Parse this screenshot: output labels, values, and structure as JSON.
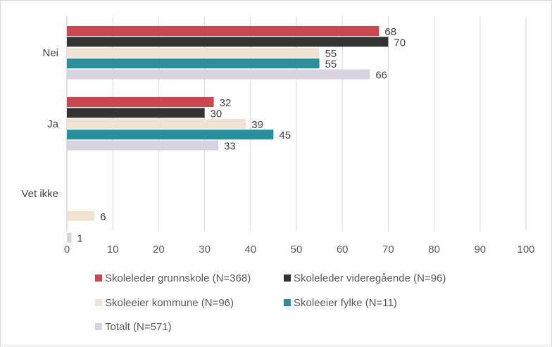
{
  "chart_data": {
    "type": "bar",
    "orientation": "horizontal",
    "categories": [
      "Nei",
      "Ja",
      "Vet ikke"
    ],
    "series": [
      {
        "name": "Skoleleder grunnskole (N=368)",
        "color": "#c9474f",
        "values": [
          68,
          32,
          null
        ]
      },
      {
        "name": "Skoleleder videregående (N=96)",
        "color": "#333333",
        "values": [
          70,
          30,
          null
        ]
      },
      {
        "name": "Skoleeier kommune (N=96)",
        "color": "#efe3d4",
        "values": [
          55,
          39,
          6
        ]
      },
      {
        "name": "Skoleeier fylke (N=11)",
        "color": "#2a8f9a",
        "values": [
          55,
          45,
          null
        ]
      },
      {
        "name": "Totalt (N=571)",
        "color": "#d9d2e0",
        "values": [
          66,
          33,
          1
        ]
      }
    ],
    "xlim": [
      0,
      100
    ],
    "xticks": [
      "0",
      "10",
      "20",
      "30",
      "40",
      "50",
      "60",
      "70",
      "80",
      "90",
      "100"
    ],
    "grid": true,
    "legend": "bottom"
  }
}
